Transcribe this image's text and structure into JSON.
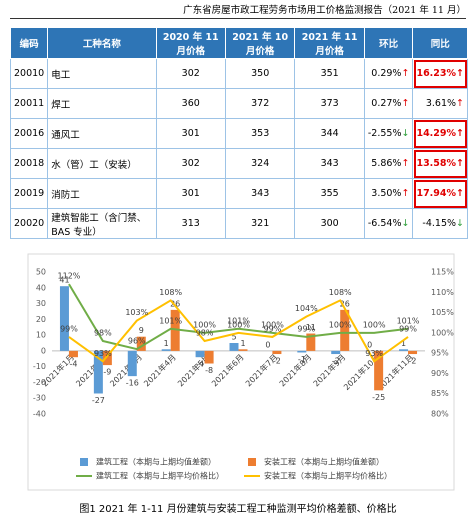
{
  "header": {
    "title": "广东省房屋市政工程劳务市场用工价格监测报告（2021 年 11 月）"
  },
  "table": {
    "columns": [
      "编码",
      "工种名称",
      "2020 年 11 月价格",
      "2021 年 10 月价格",
      "2021 年 11 月价格",
      "环比",
      "同比"
    ],
    "rows": [
      [
        "20010",
        "电工",
        "302",
        "350",
        "351",
        {
          "value": "0.29%",
          "arrow": "↑"
        },
        {
          "value": "16.23%",
          "arrow": "↑",
          "highlight": true
        }
      ],
      [
        "20011",
        "焊工",
        "360",
        "372",
        "373",
        {
          "value": "0.27%",
          "arrow": "↑"
        },
        {
          "value": "3.61%",
          "arrow": "↑"
        }
      ],
      [
        "20016",
        "通风工",
        "301",
        "353",
        "344",
        {
          "value": "-2.55%",
          "arrow": "↓"
        },
        {
          "value": "14.29%",
          "arrow": "↑",
          "highlight": true
        }
      ],
      [
        "20018",
        "水（管）工（安装）",
        "302",
        "324",
        "343",
        {
          "value": "5.86%",
          "arrow": "↑"
        },
        {
          "value": "13.58%",
          "arrow": "↑",
          "highlight": true
        }
      ],
      [
        "20019",
        "消防工",
        "301",
        "343",
        "355",
        {
          "value": "3.50%",
          "arrow": "↑"
        },
        {
          "value": "17.94%",
          "arrow": "↑",
          "highlight": true
        }
      ],
      [
        "20020",
        "建筑智能工（含门禁、BAS 专业）",
        "313",
        "321",
        "300",
        {
          "value": "-6.54%",
          "arrow": "↓"
        },
        {
          "value": "-4.15%",
          "arrow": "↓"
        }
      ]
    ]
  },
  "chart_data": {
    "type": "combo",
    "categories": [
      "2021年1月",
      "2021年2月",
      "2021年3月",
      "2021年4月",
      "2021年5月",
      "2021年6月",
      "2021年7月",
      "2021年8月",
      "2021年9月",
      "2021年10月",
      "2021年11月"
    ],
    "ylim": [
      -40,
      50
    ],
    "yticks": [
      -40,
      -30,
      -20,
      -10,
      0,
      10,
      20,
      30,
      40,
      50
    ],
    "y2lim": [
      80,
      115
    ],
    "y2ticks": [
      {
        "value": 80,
        "label": "80%"
      },
      {
        "value": 85,
        "label": "85%"
      },
      {
        "value": 90,
        "label": "90%"
      },
      {
        "value": 95,
        "label": "95%"
      },
      {
        "value": 100,
        "label": "100%"
      },
      {
        "value": 105,
        "label": "105%"
      },
      {
        "value": 110,
        "label": "110%"
      },
      {
        "value": 115,
        "label": "115%"
      }
    ],
    "series": [
      {
        "name": "建筑工程（本期与上期均值差额）",
        "type": "bar",
        "color": "#5b9bd5",
        "values": [
          41,
          -27,
          -16,
          1,
          -4,
          5,
          0,
          -1,
          -2,
          0,
          1
        ]
      },
      {
        "name": "安装工程（本期与上期均值差额）",
        "type": "bar",
        "color": "#ed7d31",
        "values": [
          -4,
          -9,
          9,
          26,
          -8,
          1,
          -2,
          11,
          26,
          -25,
          -2
        ]
      },
      {
        "name": "建筑工程（本期与上期平均价格比）",
        "type": "line",
        "axis": "y2",
        "color": "#70ad47",
        "values": [
          112,
          98,
          96,
          101,
          100,
          101,
          100,
          99,
          100,
          100,
          101
        ],
        "value_labels": [
          "112%",
          "98%",
          "96%",
          "101%",
          "100%",
          "101%",
          "100%",
          "99%",
          "100%",
          "100%",
          "101%"
        ]
      },
      {
        "name": "安装工程（本期与上期平均价格比）",
        "type": "line",
        "axis": "y2",
        "color": "#ffc000",
        "values": [
          99,
          93,
          103,
          108,
          98,
          100,
          99,
          104,
          108,
          93,
          99
        ],
        "value_labels": [
          "99%",
          "93%",
          "103%",
          "108%",
          "98%",
          "100%",
          "99%",
          "104%",
          "108%",
          "93%",
          "99%"
        ]
      }
    ]
  },
  "caption": "图1 2021 年 1-11 月份建筑与安装工程工种监测平均价格差额、价格比"
}
